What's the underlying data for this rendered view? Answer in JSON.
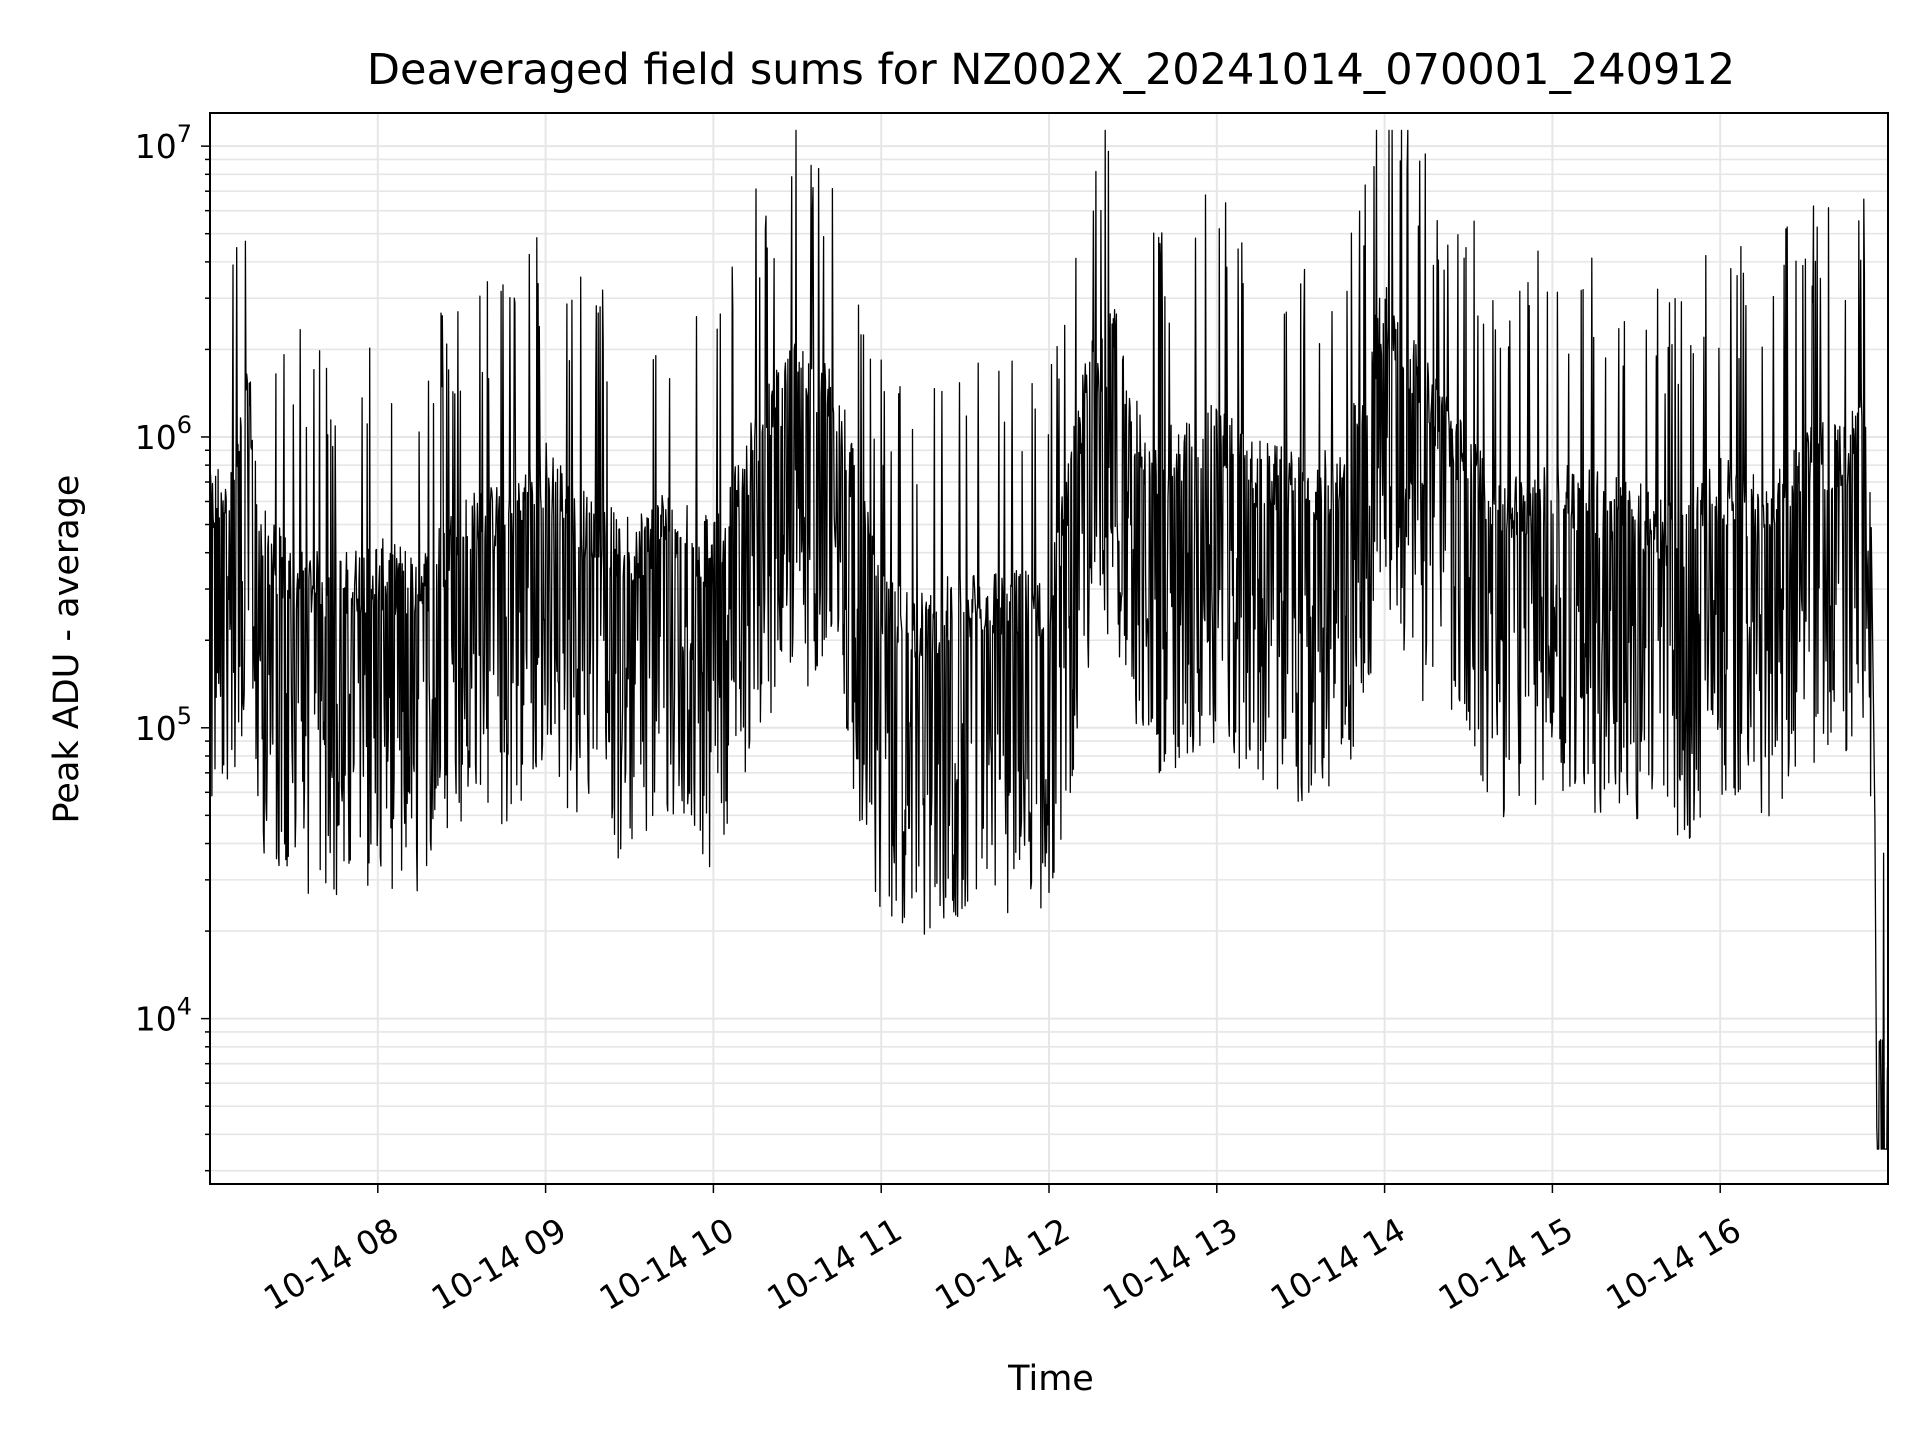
{
  "chart_data": {
    "type": "line",
    "title": "Deaveraged field sums for NZ002X_20241014_070001_240912",
    "xlabel": "Time",
    "ylabel": "Peak ADU - average",
    "yscale": "log",
    "ylim": [
      2700,
      13000000
    ],
    "xlim": [
      "2024-10-14 07:00",
      "2024-10-14 17:00"
    ],
    "grid": true,
    "line_color": "#000000",
    "grid_color": "#e6e6e6",
    "x_ticks": [
      {
        "value": "2024-10-14 08:00",
        "label": "10-14 08"
      },
      {
        "value": "2024-10-14 09:00",
        "label": "10-14 09"
      },
      {
        "value": "2024-10-14 10:00",
        "label": "10-14 10"
      },
      {
        "value": "2024-10-14 11:00",
        "label": "10-14 11"
      },
      {
        "value": "2024-10-14 12:00",
        "label": "10-14 12"
      },
      {
        "value": "2024-10-14 13:00",
        "label": "10-14 13"
      },
      {
        "value": "2024-10-14 14:00",
        "label": "10-14 14"
      },
      {
        "value": "2024-10-14 15:00",
        "label": "10-14 15"
      },
      {
        "value": "2024-10-14 16:00",
        "label": "10-14 16"
      }
    ],
    "y_ticks": [
      {
        "value": 10000,
        "base": "10",
        "exp": "4"
      },
      {
        "value": 100000,
        "base": "10",
        "exp": "5"
      },
      {
        "value": 1000000,
        "base": "10",
        "exp": "6"
      },
      {
        "value": 10000000,
        "base": "10",
        "exp": "7"
      }
    ],
    "series": [
      {
        "x": [
          "2024-10-14 07:00",
          "2024-10-14 07:10",
          "2024-10-14 07:14",
          "2024-10-14 07:18",
          "2024-10-14 07:30",
          "2024-10-14 07:45",
          "2024-10-14 08:00",
          "2024-10-14 08:15",
          "2024-10-14 08:30",
          "2024-10-14 08:45",
          "2024-10-14 09:00",
          "2024-10-14 09:15",
          "2024-10-14 09:30",
          "2024-10-14 09:45",
          "2024-10-14 10:00",
          "2024-10-14 10:15",
          "2024-10-14 10:30",
          "2024-10-14 10:45",
          "2024-10-14 10:55",
          "2024-10-14 11:00",
          "2024-10-14 11:15",
          "2024-10-14 11:30",
          "2024-10-14 11:45",
          "2024-10-14 12:00",
          "2024-10-14 12:15",
          "2024-10-14 12:25",
          "2024-10-14 12:35",
          "2024-10-14 12:45",
          "2024-10-14 13:00",
          "2024-10-14 13:15",
          "2024-10-14 13:30",
          "2024-10-14 13:45",
          "2024-10-14 14:00",
          "2024-10-14 14:15",
          "2024-10-14 14:30",
          "2024-10-14 14:45",
          "2024-10-14 15:00",
          "2024-10-14 15:15",
          "2024-10-14 15:30",
          "2024-10-14 15:45",
          "2024-10-14 16:00",
          "2024-10-14 16:15",
          "2024-10-14 16:30",
          "2024-10-14 16:45",
          "2024-10-14 16:50",
          "2024-10-14 16:52",
          "2024-10-14 16:54",
          "2024-10-14 16:56",
          "2024-10-14 16:58",
          "2024-10-14 17:00"
        ],
        "y": [
          520000,
          800000,
          1300000,
          420000,
          300000,
          280000,
          320000,
          290000,
          450000,
          500000,
          700000,
          450000,
          380000,
          500000,
          360000,
          900000,
          1700000,
          1200000,
          400000,
          240000,
          210000,
          260000,
          250000,
          250000,
          1700000,
          2000000,
          650000,
          800000,
          950000,
          700000,
          620000,
          650000,
          2600000,
          1300000,
          750000,
          520000,
          640000,
          560000,
          500000,
          420000,
          620000,
          520000,
          800000,
          820000,
          1000000,
          1100000,
          600000,
          13000,
          6500,
          7000
        ]
      }
    ]
  }
}
